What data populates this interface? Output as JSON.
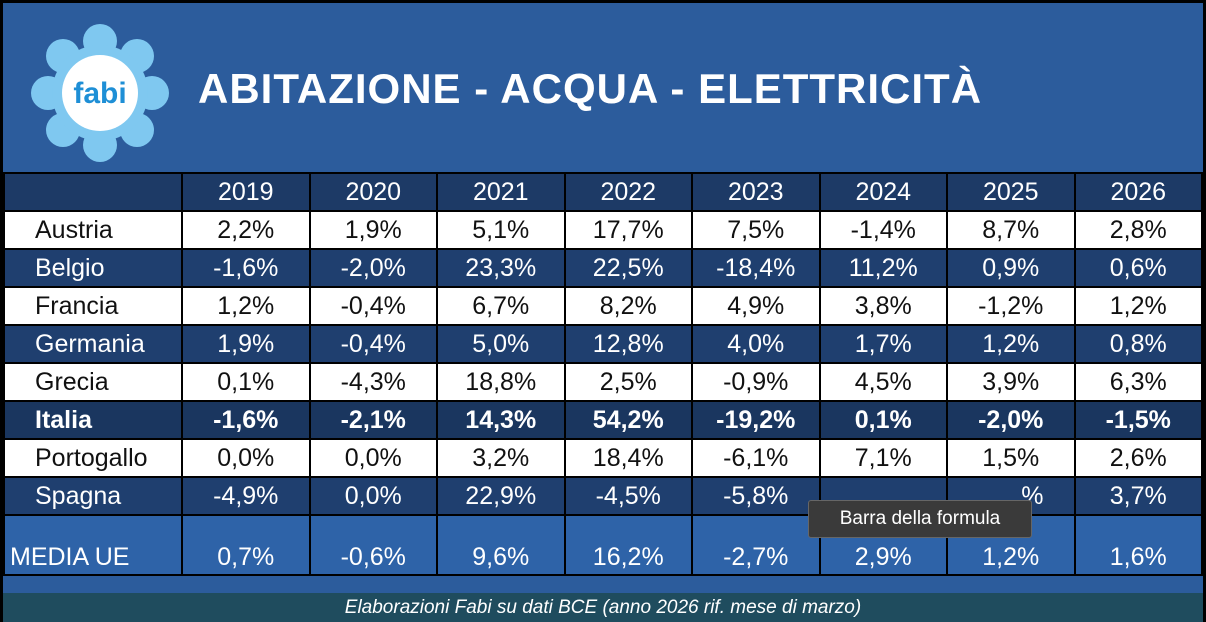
{
  "header": {
    "logo": "fabi",
    "title": "ABITAZIONE - ACQUA - ELETTRICITÀ"
  },
  "table": {
    "columns": [
      "2019",
      "2020",
      "2021",
      "2022",
      "2023",
      "2024",
      "2025",
      "2026"
    ],
    "rows": [
      [
        "Austria",
        "2,2%",
        "1,9%",
        "5,1%",
        "17,7%",
        "7,5%",
        "-1,4%",
        "8,7%",
        "2,8%"
      ],
      [
        "Belgio",
        "-1,6%",
        "-2,0%",
        "23,3%",
        "22,5%",
        "-18,4%",
        "11,2%",
        "0,9%",
        "0,6%"
      ],
      [
        "Francia",
        "1,2%",
        "-0,4%",
        "6,7%",
        "8,2%",
        "4,9%",
        "3,8%",
        "-1,2%",
        "1,2%"
      ],
      [
        "Germania",
        "1,9%",
        "-0,4%",
        "5,0%",
        "12,8%",
        "4,0%",
        "1,7%",
        "1,2%",
        "0,8%"
      ],
      [
        "Grecia",
        "0,1%",
        "-4,3%",
        "18,8%",
        "2,5%",
        "-0,9%",
        "4,5%",
        "3,9%",
        "6,3%"
      ],
      [
        "Italia",
        "-1,6%",
        "-2,1%",
        "14,3%",
        "54,2%",
        "-19,2%",
        "0,1%",
        "-2,0%",
        "-1,5%"
      ],
      [
        "Portogallo",
        "0,0%",
        "0,0%",
        "3,2%",
        "18,4%",
        "-6,1%",
        "7,1%",
        "1,5%",
        "2,6%"
      ],
      [
        "Spagna",
        "-4,9%",
        "0,0%",
        "22,9%",
        "-4,5%",
        "-5,8%",
        null,
        "%",
        "3,7%"
      ],
      [
        "MEDIA UE",
        "0,7%",
        "-0,6%",
        "9,6%",
        "16,2%",
        "-2,7%",
        "2,9%",
        "1,2%",
        "1,6%"
      ]
    ]
  },
  "footer": "Elaborazioni Fabi su dati BCE  (anno 2026 rif. mese di marzo)",
  "tooltip": "Barra della formula"
}
